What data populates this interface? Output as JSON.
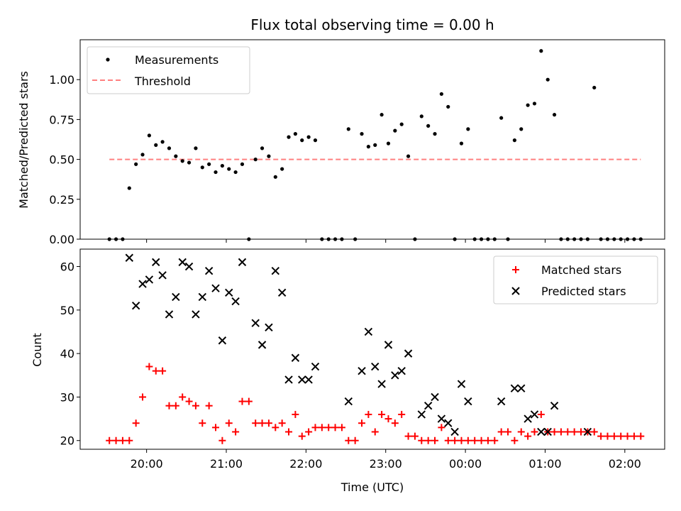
{
  "chart_data": [
    {
      "type": "scatter",
      "title": "Flux total observing time = 0.00 h",
      "xlabel": "",
      "ylabel": "Matched/Predicted stars",
      "xlim": [
        "19:10",
        "02:30"
      ],
      "ylim": [
        0.0,
        1.25
      ],
      "yticks": [
        "0.00",
        "0.25",
        "0.50",
        "0.75",
        "1.00"
      ],
      "grid": false,
      "legend_position": "top-left",
      "series": [
        {
          "name": "Measurements",
          "kind": "points",
          "color": "#000000",
          "x": [
            "19:32",
            "19:37",
            "19:42",
            "19:47",
            "19:52",
            "19:57",
            "20:02",
            "20:07",
            "20:12",
            "20:17",
            "20:22",
            "20:27",
            "20:32",
            "20:37",
            "20:42",
            "20:47",
            "20:52",
            "20:57",
            "21:02",
            "21:07",
            "21:12",
            "21:17",
            "21:22",
            "21:27",
            "21:32",
            "21:37",
            "21:42",
            "21:47",
            "21:52",
            "21:57",
            "22:02",
            "22:07",
            "22:12",
            "22:17",
            "22:22",
            "22:27",
            "22:32",
            "22:37",
            "22:42",
            "22:47",
            "22:52",
            "22:57",
            "23:02",
            "23:07",
            "23:12",
            "23:17",
            "23:22",
            "23:27",
            "23:32",
            "23:37",
            "23:42",
            "23:47",
            "23:52",
            "23:57",
            "00:02",
            "00:07",
            "00:12",
            "00:17",
            "00:22",
            "00:27",
            "00:32",
            "00:37",
            "00:42",
            "00:47",
            "00:52",
            "00:57",
            "01:02",
            "01:07",
            "01:12",
            "01:17",
            "01:22",
            "01:27",
            "01:32",
            "01:37",
            "01:42",
            "01:47",
            "01:52",
            "01:57",
            "02:02",
            "02:07",
            "02:12"
          ],
          "y": [
            0.0,
            0.0,
            0.0,
            0.32,
            0.47,
            0.53,
            0.65,
            0.59,
            0.61,
            0.57,
            0.52,
            0.49,
            0.48,
            0.57,
            0.45,
            0.47,
            0.42,
            0.46,
            0.44,
            0.42,
            0.47,
            0.0,
            0.5,
            0.57,
            0.52,
            0.39,
            0.44,
            0.64,
            0.66,
            0.62,
            0.64,
            0.62,
            0.0,
            0.0,
            0.0,
            0.0,
            0.69,
            0.0,
            0.66,
            0.58,
            0.59,
            0.78,
            0.6,
            0.68,
            0.72,
            0.52,
            0.0,
            0.77,
            0.71,
            0.66,
            0.91,
            0.83,
            0.0,
            0.6,
            0.69,
            0.0,
            0.0,
            0.0,
            0.0,
            0.76,
            0.0,
            0.62,
            0.69,
            0.84,
            0.85,
            1.18,
            1.0,
            0.78,
            0.0,
            0.0,
            0.0,
            0.0,
            0.0,
            0.95,
            0.0,
            0.0,
            0.0,
            0.0,
            0.0,
            0.0,
            0.0
          ]
        },
        {
          "name": "Threshold",
          "kind": "dashed-line",
          "color": "#ff8080",
          "x": [
            "19:32",
            "02:12"
          ],
          "y": [
            0.5,
            0.5
          ]
        }
      ]
    },
    {
      "type": "scatter",
      "title": "",
      "xlabel": "Time (UTC)",
      "ylabel": "Count",
      "xlim": [
        "19:10",
        "02:30"
      ],
      "ylim": [
        18,
        64
      ],
      "xticks": [
        "20:00",
        "21:00",
        "22:00",
        "23:00",
        "00:00",
        "01:00",
        "02:00"
      ],
      "yticks": [
        "20",
        "30",
        "40",
        "50",
        "60"
      ],
      "grid": false,
      "legend_position": "top-right",
      "series": [
        {
          "name": "Matched stars",
          "marker": "plus",
          "color": "#ff0000",
          "x": [
            "19:32",
            "19:37",
            "19:42",
            "19:47",
            "19:52",
            "19:57",
            "20:02",
            "20:07",
            "20:12",
            "20:17",
            "20:22",
            "20:27",
            "20:32",
            "20:37",
            "20:42",
            "20:47",
            "20:52",
            "20:57",
            "21:02",
            "21:07",
            "21:12",
            "21:17",
            "21:22",
            "21:27",
            "21:32",
            "21:37",
            "21:42",
            "21:47",
            "21:52",
            "21:57",
            "22:02",
            "22:07",
            "22:12",
            "22:17",
            "22:22",
            "22:27",
            "22:32",
            "22:37",
            "22:42",
            "22:47",
            "22:52",
            "22:57",
            "23:02",
            "23:07",
            "23:12",
            "23:17",
            "23:22",
            "23:27",
            "23:32",
            "23:37",
            "23:42",
            "23:47",
            "23:52",
            "23:57",
            "00:02",
            "00:07",
            "00:12",
            "00:17",
            "00:22",
            "00:27",
            "00:32",
            "00:37",
            "00:42",
            "00:47",
            "00:52",
            "00:57",
            "01:02",
            "01:07",
            "01:12",
            "01:17",
            "01:22",
            "01:27",
            "01:32",
            "01:37",
            "01:42",
            "01:47",
            "01:52",
            "01:57",
            "02:02",
            "02:07",
            "02:12"
          ],
          "y": [
            20,
            20,
            20,
            20,
            24,
            30,
            37,
            36,
            36,
            28,
            28,
            30,
            29,
            28,
            24,
            28,
            23,
            20,
            24,
            22,
            29,
            29,
            24,
            24,
            24,
            23,
            24,
            22,
            26,
            21,
            22,
            23,
            23,
            23,
            23,
            23,
            20,
            20,
            24,
            26,
            22,
            26,
            25,
            24,
            26,
            21,
            21,
            20,
            20,
            20,
            23,
            20,
            20,
            20,
            20,
            20,
            20,
            20,
            20,
            22,
            22,
            20,
            22,
            21,
            22,
            26,
            22,
            22,
            22,
            22,
            22,
            22,
            22,
            22,
            21,
            21,
            21,
            21,
            21,
            21,
            21
          ]
        },
        {
          "name": "Predicted stars",
          "marker": "x",
          "color": "#000000",
          "x": [
            "19:47",
            "19:52",
            "19:57",
            "20:02",
            "20:07",
            "20:12",
            "20:17",
            "20:22",
            "20:27",
            "20:32",
            "20:37",
            "20:42",
            "20:47",
            "20:52",
            "20:57",
            "21:02",
            "21:07",
            "21:12",
            "21:22",
            "21:27",
            "21:32",
            "21:37",
            "21:42",
            "21:47",
            "21:52",
            "21:57",
            "22:02",
            "22:07",
            "22:32",
            "22:42",
            "22:47",
            "22:52",
            "22:57",
            "23:02",
            "23:07",
            "23:12",
            "23:17",
            "23:27",
            "23:32",
            "23:37",
            "23:42",
            "23:47",
            "23:52",
            "23:57",
            "00:02",
            "00:27",
            "00:37",
            "00:42",
            "00:47",
            "00:52",
            "00:57",
            "01:02",
            "01:07",
            "01:32"
          ],
          "y": [
            62,
            51,
            56,
            57,
            61,
            58,
            49,
            53,
            61,
            60,
            49,
            53,
            59,
            55,
            43,
            54,
            52,
            61,
            47,
            42,
            46,
            59,
            54,
            34,
            39,
            34,
            34,
            37,
            29,
            36,
            45,
            37,
            33,
            42,
            35,
            36,
            40,
            26,
            28,
            30,
            25,
            24,
            22,
            33,
            29,
            29,
            32,
            32,
            25,
            26,
            22,
            22,
            28,
            22
          ]
        }
      ]
    }
  ]
}
